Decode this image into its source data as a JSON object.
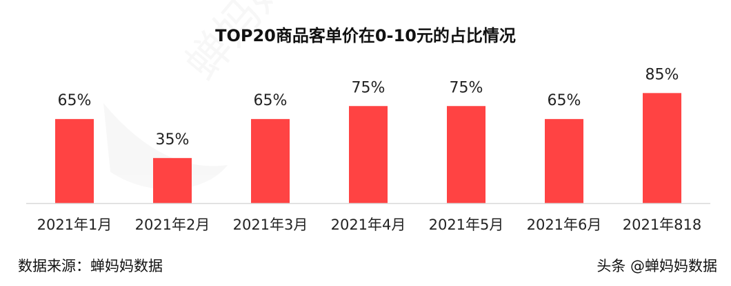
{
  "chart_data": {
    "type": "bar",
    "title": "TOP20商品客单价在0-10元的占比情况",
    "categories": [
      "2021年1月",
      "2021年2月",
      "2021年3月",
      "2021年4月",
      "2021年5月",
      "2021年6月",
      "2021年818"
    ],
    "values": [
      65,
      35,
      65,
      75,
      75,
      65,
      85
    ],
    "value_labels": [
      "65%",
      "35%",
      "65%",
      "75%",
      "75%",
      "65%",
      "85%"
    ],
    "unit": "%",
    "ylim": [
      0,
      100
    ],
    "grid": false,
    "colors": {
      "bar": "#FF4343",
      "baseline": "#D9D9D9"
    }
  },
  "footer": {
    "source": "数据来源：蝉妈妈数据",
    "credit": "头条 @蝉妈妈数据"
  },
  "watermark": "蝉妈妈"
}
